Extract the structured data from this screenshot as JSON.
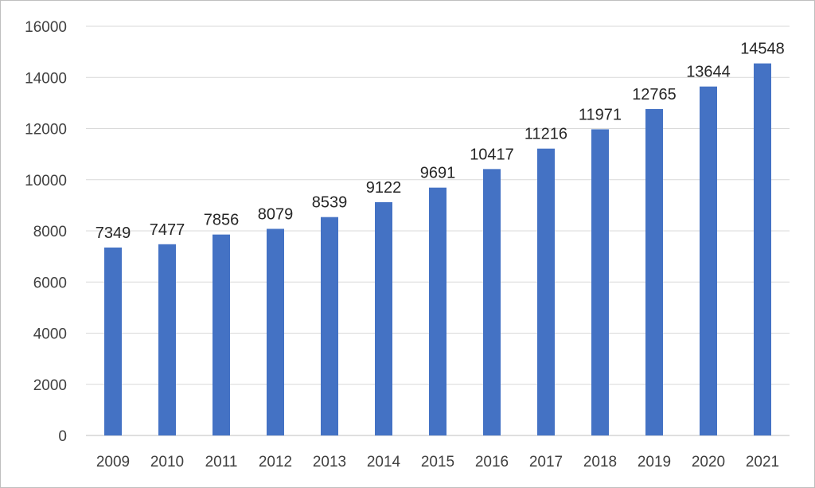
{
  "chart_data": {
    "type": "bar",
    "title": "",
    "xlabel": "",
    "ylabel": "",
    "categories": [
      "2009",
      "2010",
      "2011",
      "2012",
      "2013",
      "2014",
      "2015",
      "2016",
      "2017",
      "2018",
      "2019",
      "2020",
      "2021"
    ],
    "values": [
      7349,
      7477,
      7856,
      8079,
      8539,
      9122,
      9691,
      10417,
      11216,
      11971,
      12765,
      13644,
      14548
    ],
    "ylim": [
      0,
      16000
    ],
    "yticks": [
      0,
      2000,
      4000,
      6000,
      8000,
      10000,
      12000,
      14000,
      16000
    ],
    "grid": true,
    "legend": "none",
    "bar_color": "#4472C4",
    "data_labels": true
  }
}
